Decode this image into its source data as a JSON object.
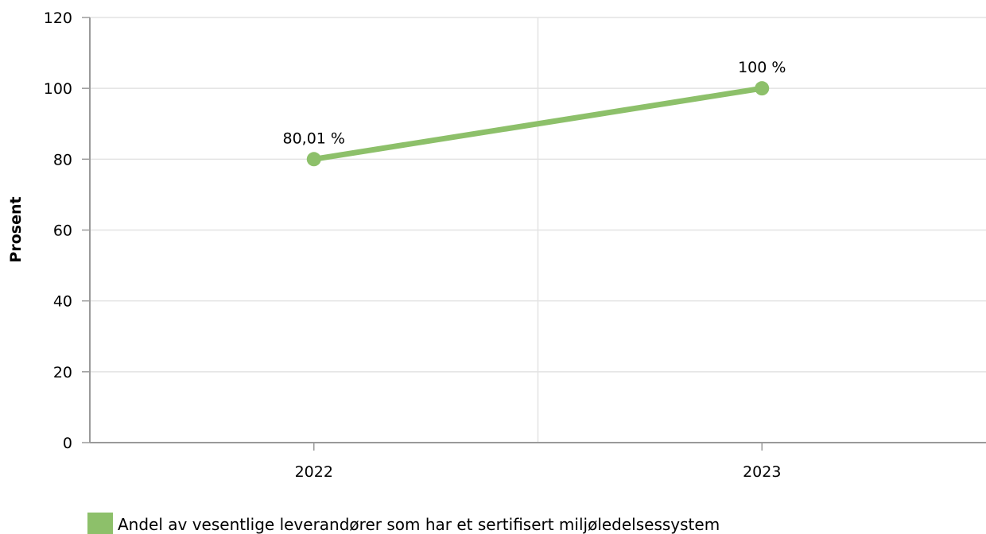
{
  "chart_data": {
    "type": "line",
    "categories": [
      "2022",
      "2023"
    ],
    "series": [
      {
        "name": "Andel av vesentlige leverandører som har et sertifisert miljøledelsessystem",
        "values": [
          80.01,
          100
        ],
        "labels": [
          "80,01 %",
          "100 %"
        ],
        "color": "#8dc06a"
      }
    ],
    "ylabel": "Prosent",
    "ylim": [
      0,
      120
    ],
    "yticks": [
      0,
      20,
      40,
      60,
      80,
      100,
      120
    ],
    "grid": true,
    "legend_position": "bottom-left"
  },
  "colors": {
    "series": "#8dc06a",
    "grid": "#e3e3e3",
    "axis": "#9a9a9a"
  }
}
